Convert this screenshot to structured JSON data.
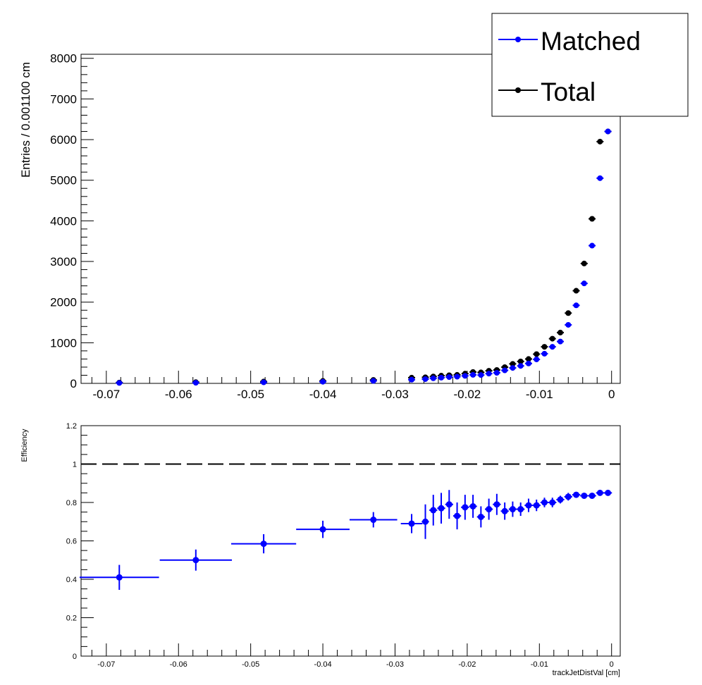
{
  "chart_data": [
    {
      "type": "scatter",
      "ylabel": "Entries / 0.001100 cm",
      "xlim": [
        -0.0735,
        0.0012
      ],
      "ylim": [
        0,
        8100
      ],
      "x_ticks": [
        "-0.07",
        "-0.06",
        "-0.05",
        "-0.04",
        "-0.03",
        "-0.02",
        "-0.01",
        "0"
      ],
      "x_tick_values": [
        -0.07,
        -0.06,
        -0.05,
        -0.04,
        -0.03,
        -0.02,
        -0.01,
        0
      ],
      "y_ticks": [
        "0",
        "1000",
        "2000",
        "3000",
        "4000",
        "5000",
        "6000",
        "7000",
        "8000"
      ],
      "y_tick_values": [
        0,
        1000,
        2000,
        3000,
        4000,
        5000,
        6000,
        7000,
        8000
      ],
      "legend": {
        "placement": "top-right",
        "entries": [
          "Matched",
          "Total"
        ]
      },
      "series": [
        {
          "name": "Total",
          "color": "#000000",
          "x": [
            -0.0682,
            -0.0576,
            -0.0482,
            -0.04,
            -0.033,
            -0.0277,
            -0.0258,
            -0.0247,
            -0.0236,
            -0.0225,
            -0.0214,
            -0.0203,
            -0.0192,
            -0.0181,
            -0.017,
            -0.0159,
            -0.0148,
            -0.0137,
            -0.0126,
            -0.0115,
            -0.0104,
            -0.0093,
            -0.0082,
            -0.0071,
            -0.006,
            -0.0049,
            -0.0038,
            -0.0027,
            -0.0016,
            -0.0005
          ],
          "y": [
            20,
            30,
            45,
            60,
            85,
            140,
            150,
            170,
            190,
            200,
            210,
            240,
            280,
            270,
            310,
            330,
            400,
            480,
            540,
            600,
            720,
            900,
            1100,
            1250,
            1730,
            2280,
            2950,
            4050,
            5950,
            6200
          ]
        },
        {
          "name": "Matched",
          "color": "#0000ff",
          "x": [
            -0.0682,
            -0.0576,
            -0.0482,
            -0.04,
            -0.033,
            -0.0277,
            -0.0258,
            -0.0247,
            -0.0236,
            -0.0225,
            -0.0214,
            -0.0203,
            -0.0192,
            -0.0181,
            -0.017,
            -0.0159,
            -0.0148,
            -0.0137,
            -0.0126,
            -0.0115,
            -0.0104,
            -0.0093,
            -0.0082,
            -0.0071,
            -0.006,
            -0.0049,
            -0.0038,
            -0.0027,
            -0.0016,
            -0.0005
          ],
          "y": [
            10,
            15,
            25,
            40,
            60,
            90,
            105,
            125,
            140,
            155,
            165,
            185,
            210,
            205,
            240,
            260,
            320,
            380,
            430,
            490,
            590,
            730,
            900,
            1030,
            1440,
            1920,
            2460,
            3390,
            5050,
            6200
          ]
        }
      ]
    },
    {
      "type": "scatter",
      "xlabel": "trackJetDistVal [cm]",
      "ylabel": "Efficiency",
      "xlim": [
        -0.0735,
        0.0012
      ],
      "ylim": [
        0,
        1.2
      ],
      "x_ticks": [
        "-0.07",
        "-0.06",
        "-0.05",
        "-0.04",
        "-0.03",
        "-0.02",
        "-0.01",
        "0"
      ],
      "x_tick_values": [
        -0.07,
        -0.06,
        -0.05,
        -0.04,
        -0.03,
        -0.02,
        -0.01,
        0
      ],
      "y_ticks": [
        "0",
        "0.2",
        "0.4",
        "0.6",
        "0.8",
        "1",
        "1.2"
      ],
      "y_tick_values": [
        0,
        0.2,
        0.4,
        0.6,
        0.8,
        1,
        1.2
      ],
      "reference_line": 1.0,
      "series": [
        {
          "color": "#0000ff",
          "x": [
            -0.0682,
            -0.0576,
            -0.0482,
            -0.04,
            -0.033,
            -0.0277,
            -0.0258,
            -0.0247,
            -0.0236,
            -0.0225,
            -0.0214,
            -0.0203,
            -0.0192,
            -0.0181,
            -0.017,
            -0.0159,
            -0.0148,
            -0.0137,
            -0.0126,
            -0.0115,
            -0.0104,
            -0.0093,
            -0.0082,
            -0.0071,
            -0.006,
            -0.0049,
            -0.0038,
            -0.0027,
            -0.0016,
            -0.0005
          ],
          "y": [
            0.41,
            0.5,
            0.585,
            0.66,
            0.71,
            0.69,
            0.7,
            0.76,
            0.77,
            0.79,
            0.73,
            0.775,
            0.78,
            0.725,
            0.765,
            0.79,
            0.755,
            0.765,
            0.765,
            0.785,
            0.785,
            0.8,
            0.8,
            0.815,
            0.83,
            0.84,
            0.835,
            0.835,
            0.85,
            0.85
          ],
          "xerr": [
            0.0055,
            0.005,
            0.0045,
            0.0037,
            0.0033,
            0.0015,
            0.0005,
            0.00055,
            0.00055,
            0.00055,
            0.00055,
            0.00055,
            0.00055,
            0.00055,
            0.00055,
            0.00055,
            0.00055,
            0.00055,
            0.00055,
            0.00055,
            0.00055,
            0.00055,
            0.00055,
            0.00055,
            0.00055,
            0.00055,
            0.00055,
            0.00055,
            0.00055,
            0.00055
          ],
          "yerr": [
            0.065,
            0.055,
            0.05,
            0.045,
            0.04,
            0.05,
            0.09,
            0.08,
            0.08,
            0.075,
            0.07,
            0.065,
            0.06,
            0.055,
            0.055,
            0.055,
            0.045,
            0.04,
            0.035,
            0.035,
            0.03,
            0.025,
            0.025,
            0.02,
            0.02,
            0.015,
            0.012,
            0.01,
            0.008,
            0.006
          ]
        }
      ]
    }
  ]
}
